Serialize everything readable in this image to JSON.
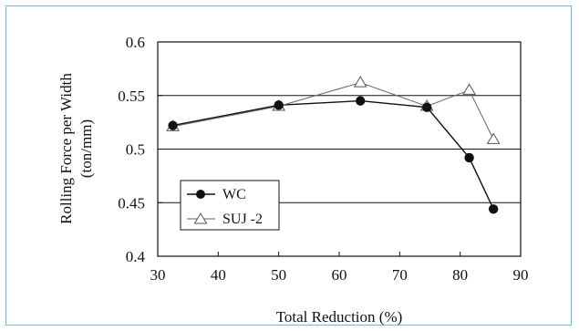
{
  "chart_data": {
    "type": "line",
    "title": "",
    "xlabel": "Total Reduction (%)",
    "ylabel_line1": "Rolling Force per Width",
    "ylabel_line2": "(ton/mm)",
    "xlim": [
      30,
      90
    ],
    "ylim": [
      0.4,
      0.6
    ],
    "xticks": [
      30,
      40,
      50,
      60,
      70,
      80,
      90
    ],
    "yticks": [
      "0.4",
      "0.45",
      "0.5",
      "0.55",
      "0.6"
    ],
    "ytick_values": [
      0.4,
      0.45,
      0.5,
      0.55,
      0.6
    ],
    "grid": "horizontal",
    "legend_position": "bottom-left",
    "series": [
      {
        "name": "WC",
        "marker": "filled-circle",
        "x": [
          32.5,
          50,
          63.5,
          74.5,
          81.5,
          85.5
        ],
        "y": [
          0.522,
          0.541,
          0.545,
          0.539,
          0.492,
          0.444
        ]
      },
      {
        "name": "SUJ -2",
        "marker": "open-triangle",
        "x": [
          32.5,
          50,
          63.5,
          74.5,
          81.5,
          85.5
        ],
        "y": [
          0.521,
          0.54,
          0.562,
          0.54,
          0.555,
          0.509
        ]
      }
    ]
  }
}
